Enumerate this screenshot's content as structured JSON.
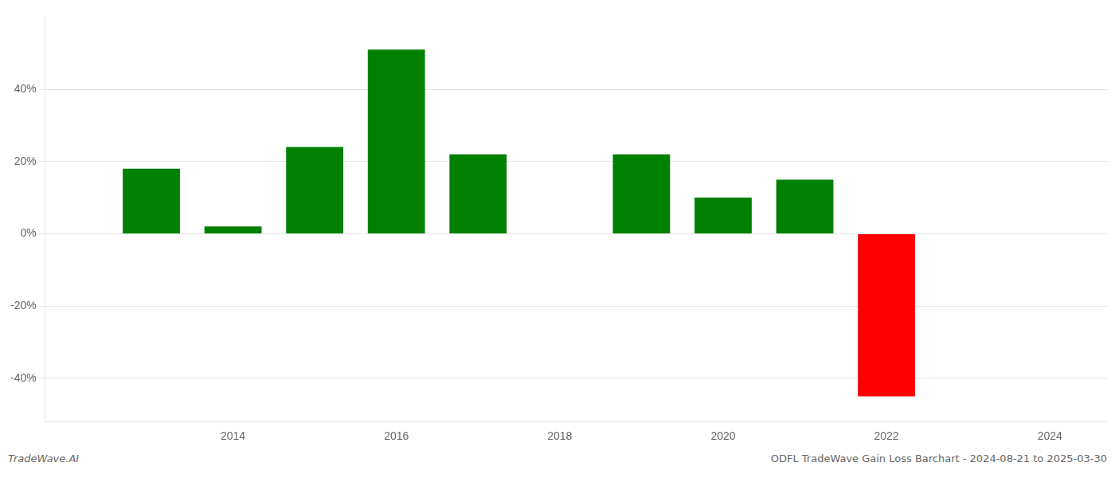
{
  "chart_data": {
    "type": "bar",
    "x": [
      2013,
      2014,
      2015,
      2016,
      2017,
      2019,
      2020,
      2021,
      2022,
      2023
    ],
    "values": [
      0.18,
      0.02,
      0.24,
      0.51,
      0.22,
      0.22,
      0.1,
      0.15,
      -0.45,
      0.0
    ],
    "colors": [
      "#008000",
      "#008000",
      "#008000",
      "#008000",
      "#008000",
      "#008000",
      "#008000",
      "#008000",
      "#ff0000",
      "#008000"
    ],
    "annotations": [
      "TradeWave.AI",
      "ODFL TradeWave Gain Loss Barchart - 2024-08-21 to 2025-03-30"
    ],
    "xlim": [
      2011.7,
      2024.7
    ],
    "xticks": [
      2014,
      2016,
      2018,
      2020,
      2022,
      2024
    ],
    "ylim": [
      -0.52,
      0.6
    ],
    "yticks": [
      {
        "value": -0.4,
        "label": "-40%"
      },
      {
        "value": -0.2,
        "label": "-20%"
      },
      {
        "value": 0.0,
        "label": "0%"
      },
      {
        "value": 0.2,
        "label": "20%"
      },
      {
        "value": 0.4,
        "label": "40%"
      }
    ],
    "grid": "y"
  }
}
